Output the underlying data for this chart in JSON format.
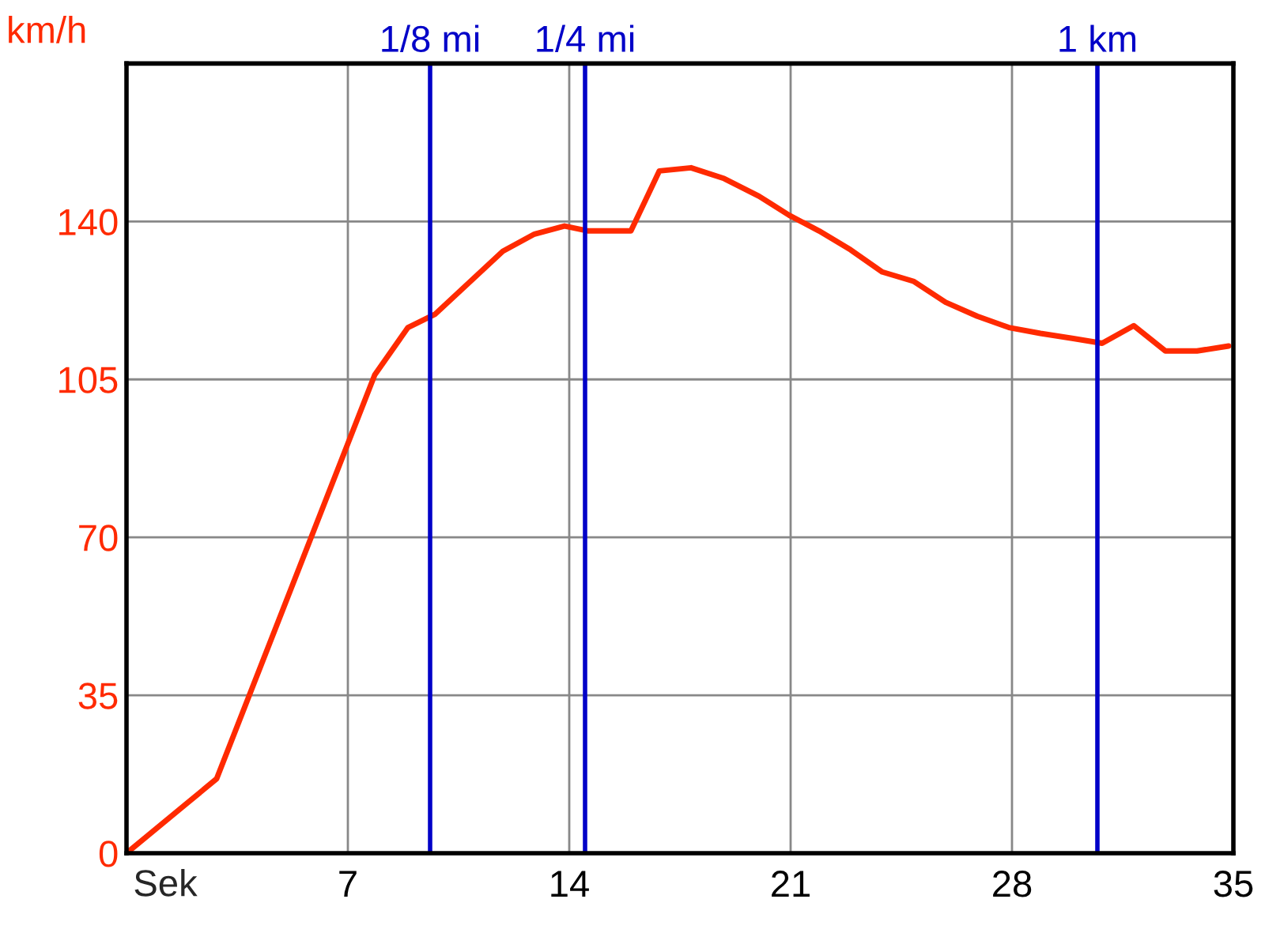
{
  "chart_data": {
    "type": "line",
    "xlabel": "Sek",
    "ylabel": "km/h",
    "xlim": [
      0,
      35
    ],
    "ylim": [
      0,
      175
    ],
    "xticks": [
      7,
      14,
      21,
      28,
      35
    ],
    "yticks": [
      0,
      35,
      70,
      105,
      140
    ],
    "grid": true,
    "line_style": "solid",
    "marker": "none",
    "series": [
      {
        "color": "#ff2a00",
        "x": [
          0,
          2.85,
          7.85,
          8.9,
          9.75,
          11.9,
          12.9,
          13.85,
          14.6,
          15.95,
          16.85,
          17.85,
          18.9,
          20,
          20.95,
          21.9,
          22.9,
          23.9,
          24.9,
          25.9,
          26.9,
          27.9,
          28.9,
          29.9,
          30.85,
          31.85,
          32.85,
          33.85,
          34.85
        ],
        "values": [
          0,
          16.5,
          106,
          116.5,
          119.4,
          133.4,
          137.2,
          139,
          137.9,
          137.9,
          151.2,
          151.9,
          149.5,
          145.6,
          141.4,
          137.9,
          133.7,
          128.8,
          126.7,
          122.1,
          119,
          116.5,
          115.2,
          114.1,
          113,
          116.9,
          111.3,
          111.3,
          112.4
        ]
      }
    ],
    "ref_lines": [
      {
        "axis": "x",
        "value": 9.6,
        "label": "1/8 mi",
        "color": "#0000c8"
      },
      {
        "axis": "x",
        "value": 14.5,
        "label": "1/4 mi",
        "color": "#0000c8"
      },
      {
        "axis": "x",
        "value": 30.7,
        "label": "1 km",
        "color": "#0000c8"
      }
    ]
  }
}
